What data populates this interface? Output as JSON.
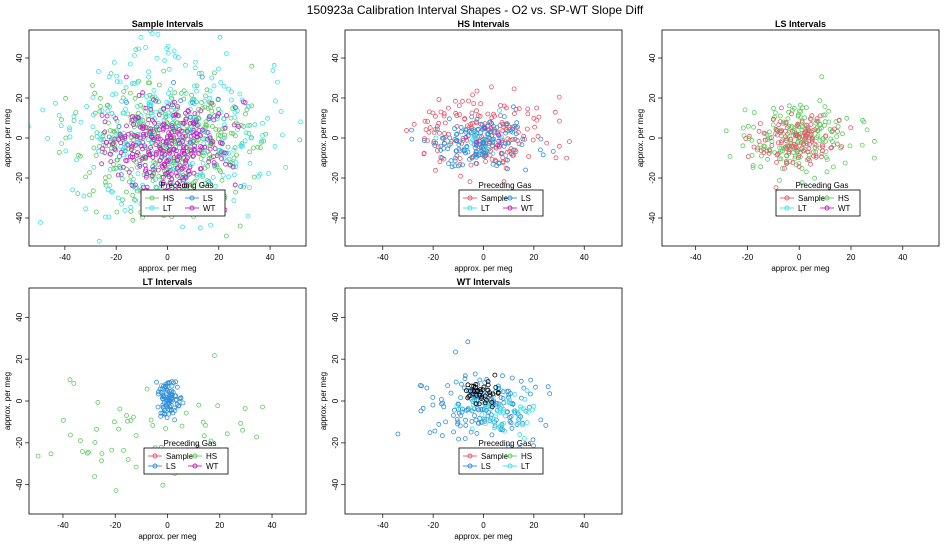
{
  "title": "150923a   Calibration Interval Shapes - O2 vs. SP-WT Slope Diff",
  "legend_title": "Preceding Gas",
  "colors": {
    "Sample": "#e8566b",
    "HS": "#5ecb5e",
    "LS": "#2e8fd9",
    "LT": "#3ee0e6",
    "WT": "#c41fc4",
    "black": "#000000"
  },
  "chart_data": [
    {
      "type": "scatter",
      "title": "Sample Intervals",
      "xlabel": "approx. per meg",
      "ylabel": "approx. per meg",
      "xlim": [
        -54,
        54
      ],
      "ylim": [
        -54,
        54
      ],
      "xticks": [
        -40,
        -20,
        0,
        20,
        40
      ],
      "yticks": [
        -40,
        -20,
        0,
        20,
        40
      ],
      "legend": [
        "HS",
        "LT",
        "LS",
        "WT"
      ],
      "series": [
        {
          "name": "HS",
          "n": 420,
          "center": [
            0,
            -3
          ],
          "spread": [
            17,
            16
          ]
        },
        {
          "name": "LT",
          "n": 320,
          "center": [
            2,
            3
          ],
          "spread": [
            22,
            22
          ]
        },
        {
          "name": "LS",
          "n": 40,
          "center": [
            0,
            0
          ],
          "spread": [
            12,
            12
          ]
        },
        {
          "name": "WT",
          "n": 300,
          "center": [
            0,
            -4
          ],
          "spread": [
            12,
            11
          ]
        }
      ]
    },
    {
      "type": "scatter",
      "title": "HS Intervals",
      "xlabel": "approx. per meg",
      "ylabel": "approx. per meg",
      "xlim": [
        -55,
        55
      ],
      "ylim": [
        -54,
        54
      ],
      "xticks": [
        -40,
        -20,
        0,
        20,
        40
      ],
      "yticks": [
        -40,
        -20,
        0,
        20,
        40
      ],
      "legend": [
        "Sample",
        "LT",
        "LS",
        "WT"
      ],
      "series": [
        {
          "name": "Sample",
          "n": 200,
          "center": [
            0,
            2
          ],
          "spread": [
            12,
            9
          ]
        },
        {
          "name": "LS",
          "n": 150,
          "center": [
            -2,
            -2
          ],
          "spread": [
            10,
            7
          ]
        },
        {
          "name": "LT",
          "n": 20,
          "center": [
            0,
            0
          ],
          "spread": [
            8,
            6
          ]
        },
        {
          "name": "WT",
          "n": 8,
          "center": [
            0,
            0
          ],
          "spread": [
            5,
            5
          ]
        }
      ]
    },
    {
      "type": "scatter",
      "title": "LS Intervals",
      "xlabel": "approx. per meg",
      "ylabel": "approx. per meg",
      "xlim": [
        -53,
        54
      ],
      "ylim": [
        -54,
        54
      ],
      "xticks": [
        -40,
        -20,
        0,
        20,
        40
      ],
      "yticks": [
        -40,
        -20,
        0,
        20,
        40
      ],
      "legend": [
        "Sample",
        "LT",
        "HS",
        "WT"
      ],
      "series": [
        {
          "name": "HS",
          "n": 200,
          "center": [
            0,
            0
          ],
          "spread": [
            10,
            8
          ]
        },
        {
          "name": "Sample",
          "n": 120,
          "center": [
            0,
            -1
          ],
          "spread": [
            8,
            7
          ]
        }
      ]
    },
    {
      "type": "scatter",
      "title": "LT Intervals",
      "xlabel": "approx. per meg",
      "ylabel": "approx. per meg",
      "xlim": [
        -53,
        53
      ],
      "ylim": [
        -54,
        54
      ],
      "xticks": [
        -40,
        -20,
        0,
        20,
        40
      ],
      "yticks": [
        -40,
        -20,
        0,
        20,
        40
      ],
      "legend": [
        "Sample",
        "LS",
        "HS",
        "WT"
      ],
      "series": [
        {
          "name": "HS",
          "n": 60,
          "center": [
            -10,
            -18
          ],
          "spread": [
            20,
            12
          ]
        },
        {
          "name": "LS",
          "n": 90,
          "center": [
            0,
            1
          ],
          "spread": [
            2.5,
            4.5
          ]
        }
      ]
    },
    {
      "type": "scatter",
      "title": "WT Intervals",
      "xlabel": "approx. per meg",
      "ylabel": "approx. per meg",
      "xlim": [
        -55,
        55
      ],
      "ylim": [
        -54,
        54
      ],
      "xticks": [
        -40,
        -20,
        0,
        20,
        40
      ],
      "yticks": [
        -40,
        -20,
        0,
        20,
        40
      ],
      "legend": [
        "Sample",
        "LS",
        "HS",
        "LT"
      ],
      "series": [
        {
          "name": "LS",
          "n": 170,
          "center": [
            0,
            -2
          ],
          "spread": [
            11,
            8
          ]
        },
        {
          "name": "LT",
          "n": 60,
          "center": [
            6,
            -4
          ],
          "spread": [
            7,
            6
          ]
        },
        {
          "name": "black",
          "n": 40,
          "center": [
            0,
            4
          ],
          "spread": [
            4,
            3
          ]
        }
      ]
    }
  ]
}
